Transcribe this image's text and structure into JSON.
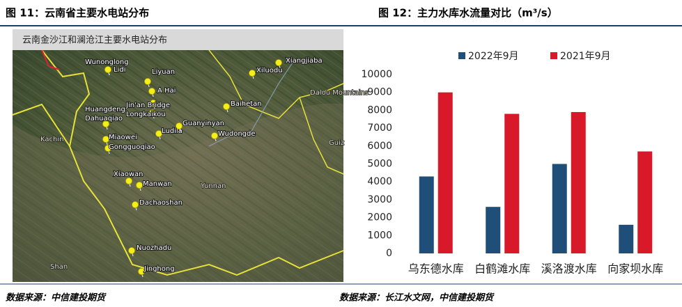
{
  "left_figure": {
    "title": "图 11：云南省主要水电站分布",
    "map_title": "云南金沙江和澜沧江主要水电站分布",
    "places": [
      "Wunonglong",
      "Lidi",
      "Liyuan",
      "A Hai",
      "Jin'an Bridge",
      "Longkaikou",
      "Huangdeng",
      "Dahuaqiao",
      "Ludila",
      "Guanyinyan",
      "Miaowei",
      "Gongguoqiao",
      "Xiaowan",
      "Manwan",
      "Dachaoshan",
      "Nuozhadu",
      "Jinghong",
      "Xiangjiaba",
      "Xiluodu",
      "Baihetan",
      "Wudongde"
    ],
    "region_labels": [
      "Kachin",
      "Yunnan",
      "Shan",
      "Dalou Mountains",
      "Guiz"
    ],
    "source": "数据来源：中信建投期货"
  },
  "chart_data": {
    "type": "bar",
    "title": "图 12：主力水库水流量对比（m³/s）",
    "categories": [
      "乌东德水库",
      "白鹤滩水库",
      "溪洛渡水库",
      "向家坝水库"
    ],
    "series": [
      {
        "name": "2022年9月",
        "color": "#1f4e79",
        "values": [
          4300,
          2600,
          5000,
          1600
        ]
      },
      {
        "name": "2021年9月",
        "color": "#d7192a",
        "values": [
          9000,
          7800,
          7900,
          5700
        ]
      }
    ],
    "ylim": [
      0,
      10000
    ],
    "yticks": [
      0,
      1000,
      2000,
      3000,
      4000,
      5000,
      6000,
      7000,
      8000,
      9000,
      10000
    ],
    "grid": false,
    "legend": "top"
  },
  "chart_source": "数据来源：长江水文网，中信建投期货"
}
